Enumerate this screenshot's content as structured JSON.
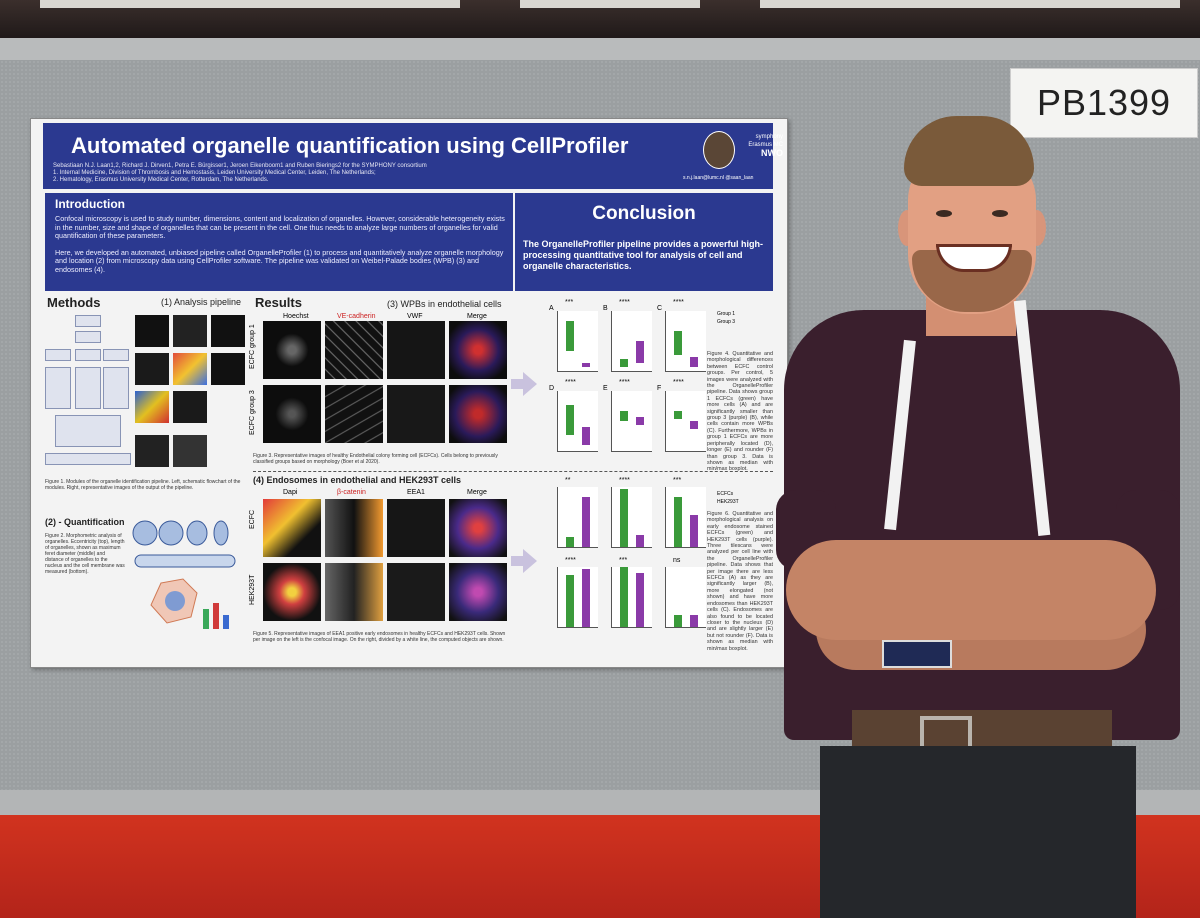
{
  "booth_sign": "PB1399",
  "poster": {
    "title": "Automated organelle quantification using CellProfiler",
    "authors": "Sebastiaan N.J. Laan1,2, Richard J. Dirven1, Petra E. Bürgisser1, Jeroen Eikenboom1 and Ruben Bierings2 for the SYMPHONY consortium",
    "affiliation_1": "1. Internal Medicine, Division of Thrombosis and Hemostasis, Leiden University Medical Center, Leiden, The Netherlands;",
    "affiliation_2": "2. Hematology, Erasmus University Medical Center, Rotterdam, The Netherlands.",
    "logos": [
      "symphony",
      "Erasmus MC",
      "NWO"
    ],
    "contact": "s.n.j.laan@lumc.nl  @saan_laan",
    "intro": {
      "heading": "Introduction",
      "paragraph_1": "Confocal microscopy is used to study number, dimensions, content and localization of organelles. However, considerable heterogeneity exists in the number, size and shape of organelles that can be present in the cell. One thus needs to analyze large numbers of organelles for valid quantification of these parameters.",
      "paragraph_2": "Here, we developed an automated, unbiased pipeline called OrganelleProfiler (1) to process and quantitatively analyze organelle morphology and location (2) from microscopy data using CellProfiler software. The pipeline was validated on Weibel-Palade bodies (WPB) (3) and endosomes (4)."
    },
    "conclusion": {
      "heading": "Conclusion",
      "text": "The OrganelleProfiler pipeline provides a powerful high-processing quantitative tool for analysis of cell and organelle characteristics."
    },
    "methods": {
      "heading": "Methods",
      "sub_pipeline": "(1) Analysis pipeline",
      "sub_quant": "(2) - Quantification",
      "fig1_caption": "Figure 1. Modules of the organelle identification pipeline. Left, schematic flowchart of the modules. Right, representative images of the output of the pipeline.",
      "fig2_caption": "Figure 2. Morphometric analysis of organelles. Eccentricity (top), length of organelles, shown as maximum feret diameter (middle) and distance of organelles to the nucleus and the cell membrane was measured (bottom)."
    },
    "results": {
      "heading": "Results",
      "sub_wpb": "(3) WPBs in endothelial cells",
      "channels": [
        "Hoechst",
        "VE-cadherin",
        "VWF",
        "Merge"
      ],
      "rows": [
        "ECFC group 1",
        "ECFC group 3"
      ],
      "fig3_caption": "Figure 3. Representative images of healthy Endothelial colony forming cell (ECFCs). Cells belong to previously classified groups based on morphology (Boer et al 2020).",
      "sub_endo": "(4) Endosomes in endothelial and HEK293T cells",
      "channels_2": [
        "Dapi",
        "β-catenin",
        "EEA1",
        "Merge"
      ],
      "rows_2": [
        "ECFC",
        "HEK293T"
      ],
      "fig5_caption": "Figure 5. Representative images of EEA1 positive early endosomes in healthy ECFCs and HEK293T cells. Shown per image on the left is the confocal image. On the right, divided by a white line, the computed objects are shown.",
      "legend_1": [
        "Group 1",
        "Group 3"
      ],
      "legend_2": [
        "ECFCs",
        "HEK293T"
      ],
      "fig4_caption": "Figure 4. Quantitative and morphological differences between ECFC control groups. Per control, 5 images were analyzed with the OrganelleProfiler pipeline. Data shows group 1 ECFCs (green) have more cells (A) and are significantly smaller than group 3 (purple) (B), while cells contain more WPBs (C). Furthermore, WPBs in group 1 ECFCs are more peripherally located (D), longer (E) and rounder (F) than group 3. Data is shown as median with min/max boxplot.",
      "fig6_caption": "Figure 6. Quantitative and morphological analysis on early endosome stained ECFCs (green) and HEK293T cells (purple). Three tilescans were analyzed per cell line with the OrganelleProfiler pipeline. Data shows that per image there are less ECFCs (A) as they are significantly larger (B), more elongated (not shown) and have more endosomes than HEK293T cells (C). Endosomes are also found to be located closer to the nucleus (D) and are slightly larger (E) but not rounder (F). Data is shown as median with min/max boxplot.",
      "panel_letters": [
        "A",
        "B",
        "C",
        "D",
        "E",
        "F"
      ],
      "sig": [
        "***",
        "****",
        "****",
        "****",
        "****",
        "****",
        "**",
        "****",
        "***",
        "****",
        "***",
        "ns"
      ]
    }
  }
}
